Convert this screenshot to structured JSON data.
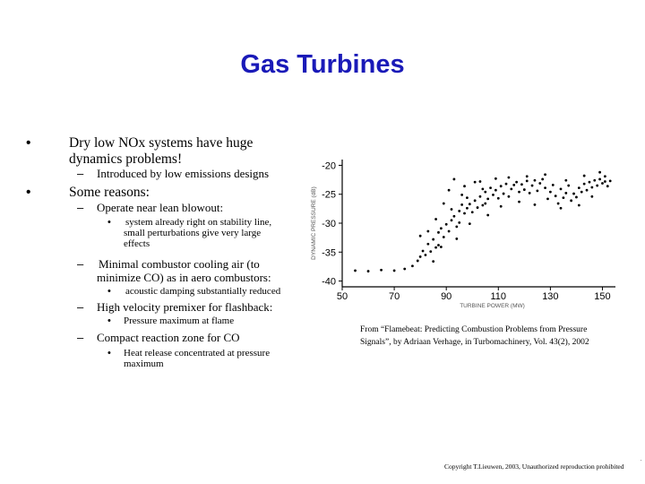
{
  "slide": {
    "title": "Gas Turbines",
    "bullets": {
      "b1_line1": "Dry low NOx systems have huge",
      "b1_line2": "dynamics problems!",
      "b1_sub1": "Introduced by low emissions designs",
      "b2": "Some reasons:",
      "s1": "Operate near lean blowout:",
      "s1_t1_line1": "system already right on stability line,",
      "s1_t1_line2": "small perturbations give very large",
      "s1_t1_line3": "effects",
      "s2_line1": "Minimal combustor cooling air (to",
      "s2_line2": "minimize CO) as in aero combustors:",
      "s2_t1": "acoustic damping substantially reduced",
      "s3": "High velocity premixer for flashback:",
      "s3_t1": "Pressure maximum at flame",
      "s4": "Compact reaction zone for CO",
      "s4_t1_line1": "Heat release concentrated at pressure",
      "s4_t1_line2": "maximum"
    },
    "markers": {
      "bullet": "•",
      "dash": "–"
    },
    "caption_line1": "From “Flamebeat: Predicting Combustion Problems from Pressure",
    "caption_line2": "Signals”, by Adriaan Verhage, in Turbomachinery, Vol. 43(2), 2002",
    "copyright": "Copyright T.Lieuwen, 2003, Unauthorized reproduction prohibited",
    "corner_mark": "."
  },
  "chart_data": {
    "type": "scatter",
    "xlabel": "TURBINE POWER (MW)",
    "ylabel": "DYNAMIC PRESSURE (dB)",
    "x_ticks": [
      50,
      70,
      90,
      110,
      130,
      150
    ],
    "y_ticks": [
      -20,
      -25,
      -30,
      -35,
      -40
    ],
    "xlim": [
      50,
      155
    ],
    "ylim": [
      -41,
      -19
    ],
    "series": [
      {
        "values": [
          [
            55,
            -38.2
          ],
          [
            60,
            -38.3
          ],
          [
            65,
            -38.1
          ],
          [
            70,
            -38.2
          ],
          [
            74,
            -37.9
          ],
          [
            77,
            -37.4
          ],
          [
            79,
            -36.5
          ],
          [
            80,
            -35.8
          ],
          [
            81,
            -34.8
          ],
          [
            82,
            -35.5
          ],
          [
            83,
            -33.6
          ],
          [
            84,
            -34.9
          ],
          [
            85,
            -32.8
          ],
          [
            86,
            -34.2
          ],
          [
            87,
            -31.6
          ],
          [
            87,
            -33.8
          ],
          [
            88,
            -30.9
          ],
          [
            89,
            -32.4
          ],
          [
            90,
            -30.2
          ],
          [
            91,
            -31.4
          ],
          [
            92,
            -29.5
          ],
          [
            92,
            -27.6
          ],
          [
            93,
            -28.8
          ],
          [
            94,
            -30.6
          ],
          [
            95,
            -27.9
          ],
          [
            95,
            -29.9
          ],
          [
            96,
            -26.8
          ],
          [
            97,
            -28.3
          ],
          [
            98,
            -27.4
          ],
          [
            98,
            -25.6
          ],
          [
            99,
            -26.7
          ],
          [
            100,
            -28.1
          ],
          [
            101,
            -26.1
          ],
          [
            102,
            -27.3
          ],
          [
            103,
            -25.4
          ],
          [
            104,
            -26.9
          ],
          [
            105,
            -24.6
          ],
          [
            105,
            -26.6
          ],
          [
            106,
            -25.8
          ],
          [
            107,
            -23.9
          ],
          [
            108,
            -25.1
          ],
          [
            109,
            -24.3
          ],
          [
            110,
            -25.7
          ],
          [
            111,
            -23.6
          ],
          [
            112,
            -24.9
          ],
          [
            113,
            -23.2
          ],
          [
            114,
            -25.4
          ],
          [
            115,
            -24.1
          ],
          [
            116,
            -23.4
          ],
          [
            117,
            -22.9
          ],
          [
            118,
            -24.6
          ],
          [
            119,
            -23.3
          ],
          [
            120,
            -24.2
          ],
          [
            121,
            -22.7
          ],
          [
            122,
            -24.8
          ],
          [
            123,
            -23.5
          ],
          [
            124,
            -22.6
          ],
          [
            125,
            -24.4
          ],
          [
            126,
            -23.1
          ],
          [
            127,
            -22.4
          ],
          [
            128,
            -23.9
          ],
          [
            129,
            -25.8
          ],
          [
            130,
            -24.6
          ],
          [
            131,
            -23.4
          ],
          [
            132,
            -25.3
          ],
          [
            133,
            -26.6
          ],
          [
            134,
            -24.1
          ],
          [
            135,
            -25.6
          ],
          [
            136,
            -24.8
          ],
          [
            137,
            -23.5
          ],
          [
            138,
            -26.1
          ],
          [
            139,
            -24.9
          ],
          [
            140,
            -25.5
          ],
          [
            141,
            -23.9
          ],
          [
            142,
            -24.6
          ],
          [
            143,
            -23.2
          ],
          [
            144,
            -24.3
          ],
          [
            145,
            -22.9
          ],
          [
            146,
            -23.8
          ],
          [
            147,
            -22.6
          ],
          [
            148,
            -23.5
          ],
          [
            149,
            -22.4
          ],
          [
            150,
            -23.1
          ],
          [
            151,
            -22.8
          ],
          [
            152,
            -23.6
          ],
          [
            153,
            -22.7
          ],
          [
            93,
            -22.4
          ],
          [
            96,
            -25.1
          ],
          [
            101,
            -22.9
          ],
          [
            104,
            -24.1
          ],
          [
            109,
            -22.3
          ],
          [
            114,
            -22.1
          ],
          [
            121,
            -21.9
          ],
          [
            128,
            -21.6
          ],
          [
            136,
            -22.6
          ],
          [
            143,
            -21.8
          ],
          [
            149,
            -21.2
          ],
          [
            151,
            -21.9
          ],
          [
            89,
            -26.6
          ],
          [
            86,
            -29.3
          ],
          [
            91,
            -24.3
          ],
          [
            97,
            -23.6
          ],
          [
            103,
            -22.8
          ],
          [
            83,
            -31.4
          ],
          [
            80,
            -32.2
          ],
          [
            85,
            -36.6
          ],
          [
            88,
            -34.1
          ],
          [
            94,
            -32.7
          ],
          [
            99,
            -30.1
          ],
          [
            106,
            -28.6
          ],
          [
            111,
            -27.1
          ],
          [
            118,
            -26.3
          ],
          [
            124,
            -26.8
          ],
          [
            134,
            -27.4
          ],
          [
            141,
            -26.9
          ],
          [
            146,
            -25.4
          ]
        ]
      }
    ],
    "grid": false,
    "legend": "none"
  }
}
